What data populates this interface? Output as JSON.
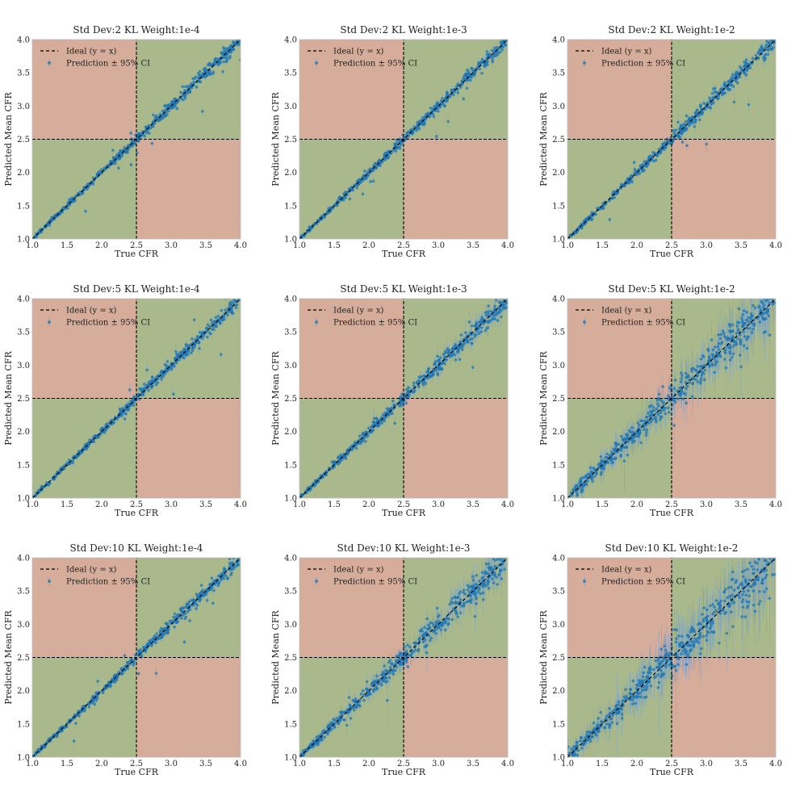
{
  "figure": {
    "background": "#ffffff",
    "colors": {
      "correct_region": "#a9b98b",
      "incorrect_region": "#d6ad9a",
      "ideal_line": "#000000",
      "threshold_line": "#000000",
      "points": "#1f77b4",
      "error_bars": "#6f9ccf"
    }
  },
  "chart_data": [
    {
      "type": "scatter",
      "title": "Std Dev:2 KL Weight:1e-4",
      "xlabel": "True CFR",
      "ylabel": "Predicted Mean CFR",
      "xlim": [
        1.0,
        4.0
      ],
      "ylim": [
        1.0,
        4.0
      ],
      "xticks": [
        "1.0",
        "1.5",
        "2.0",
        "2.5",
        "3.0",
        "3.5",
        "4.0"
      ],
      "yticks": [
        "1.0",
        "1.5",
        "2.0",
        "2.5",
        "3.0",
        "3.5",
        "4.0"
      ],
      "threshold": 2.5,
      "legend": {
        "ideal": "Ideal (y = x)",
        "pred": "Prediction ± 95% CI",
        "placement": "top-left"
      },
      "spread": 0.035,
      "ci": 0.03,
      "n_points": 520,
      "outliers": 10
    },
    {
      "type": "scatter",
      "title": "Std Dev:2 KL Weight:1e-3",
      "xlabel": "True CFR",
      "ylabel": "Predicted Mean CFR",
      "xlim": [
        1.0,
        4.0
      ],
      "ylim": [
        1.0,
        4.0
      ],
      "xticks": [
        "1.0",
        "1.5",
        "2.0",
        "2.5",
        "3.0",
        "3.5",
        "4.0"
      ],
      "yticks": [
        "1.0",
        "1.5",
        "2.0",
        "2.5",
        "3.0",
        "3.5",
        "4.0"
      ],
      "threshold": 2.5,
      "legend": {
        "ideal": "Ideal (y = x)",
        "pred": "Prediction ± 95% CI",
        "placement": "top-left"
      },
      "spread": 0.035,
      "ci": 0.04,
      "n_points": 520,
      "outliers": 8
    },
    {
      "type": "scatter",
      "title": "Std Dev:2 KL Weight:1e-2",
      "xlabel": "True CFR",
      "ylabel": "Predicted Mean CFR",
      "xlim": [
        1.0,
        4.0
      ],
      "ylim": [
        1.0,
        4.0
      ],
      "xticks": [
        "1.0",
        "1.5",
        "2.0",
        "2.5",
        "3.0",
        "3.5",
        "4.0"
      ],
      "yticks": [
        "1.0",
        "1.5",
        "2.0",
        "2.5",
        "3.0",
        "3.5",
        "4.0"
      ],
      "threshold": 2.5,
      "legend": {
        "ideal": "Ideal (y = x)",
        "pred": "Prediction ± 95% CI",
        "placement": "top-left"
      },
      "spread": 0.04,
      "ci": 0.05,
      "n_points": 520,
      "outliers": 10
    },
    {
      "type": "scatter",
      "title": "Std Dev:5 KL Weight:1e-4",
      "xlabel": "True CFR",
      "ylabel": "Predicted Mean CFR",
      "xlim": [
        1.0,
        4.0
      ],
      "ylim": [
        1.0,
        4.0
      ],
      "xticks": [
        "1.0",
        "1.5",
        "2.0",
        "2.5",
        "3.0",
        "3.5",
        "4.0"
      ],
      "yticks": [
        "1.0",
        "1.5",
        "2.0",
        "2.5",
        "3.0",
        "3.5",
        "4.0"
      ],
      "threshold": 2.5,
      "legend": {
        "ideal": "Ideal (y = x)",
        "pred": "Prediction ± 95% CI",
        "placement": "top-left"
      },
      "spread": 0.035,
      "ci": 0.04,
      "n_points": 520,
      "outliers": 10
    },
    {
      "type": "scatter",
      "title": "Std Dev:5 KL Weight:1e-3",
      "xlabel": "True CFR",
      "ylabel": "Predicted Mean CFR",
      "xlim": [
        1.0,
        4.0
      ],
      "ylim": [
        1.0,
        4.0
      ],
      "xticks": [
        "1.0",
        "1.5",
        "2.0",
        "2.5",
        "3.0",
        "3.5",
        "4.0"
      ],
      "yticks": [
        "1.0",
        "1.5",
        "2.0",
        "2.5",
        "3.0",
        "3.5",
        "4.0"
      ],
      "threshold": 2.5,
      "legend": {
        "ideal": "Ideal (y = x)",
        "pred": "Prediction ± 95% CI",
        "placement": "top-left"
      },
      "spread": 0.045,
      "ci": 0.07,
      "n_points": 520,
      "outliers": 8
    },
    {
      "type": "scatter",
      "title": "Std Dev:5 KL Weight:1e-2",
      "xlabel": "True CFR",
      "ylabel": "Predicted Mean CFR",
      "xlim": [
        1.0,
        4.0
      ],
      "ylim": [
        1.0,
        4.0
      ],
      "xticks": [
        "1.0",
        "1.5",
        "2.0",
        "2.5",
        "3.0",
        "3.5",
        "4.0"
      ],
      "yticks": [
        "1.0",
        "1.5",
        "2.0",
        "2.5",
        "3.0",
        "3.5",
        "4.0"
      ],
      "threshold": 2.5,
      "legend": {
        "ideal": "Ideal (y = x)",
        "pred": "Prediction ± 95% CI",
        "placement": "top-left"
      },
      "spread": 0.1,
      "ci": 0.22,
      "n_points": 520,
      "outliers": 6
    },
    {
      "type": "scatter",
      "title": "Std Dev:10 KL Weight:1e-4",
      "xlabel": "True CFR",
      "ylabel": "Predicted Mean CFR",
      "xlim": [
        1.0,
        4.0
      ],
      "ylim": [
        1.0,
        4.0
      ],
      "xticks": [
        "1.0",
        "1.5",
        "2.0",
        "2.5",
        "3.0",
        "3.5",
        "4.0"
      ],
      "yticks": [
        "1.0",
        "1.5",
        "2.0",
        "2.5",
        "3.0",
        "3.5",
        "4.0"
      ],
      "threshold": 2.5,
      "legend": {
        "ideal": "Ideal (y = x)",
        "pred": "Prediction ± 95% CI",
        "placement": "top-left"
      },
      "spread": 0.035,
      "ci": 0.04,
      "n_points": 520,
      "outliers": 10
    },
    {
      "type": "scatter",
      "title": "Std Dev:10 KL Weight:1e-3",
      "xlabel": "True CFR",
      "ylabel": "Predicted Mean CFR",
      "xlim": [
        1.0,
        4.0
      ],
      "ylim": [
        1.0,
        4.0
      ],
      "xticks": [
        "1.0",
        "1.5",
        "2.0",
        "2.5",
        "3.0",
        "3.5",
        "4.0"
      ],
      "yticks": [
        "1.0",
        "1.5",
        "2.0",
        "2.5",
        "3.0",
        "3.5",
        "4.0"
      ],
      "threshold": 2.5,
      "legend": {
        "ideal": "Ideal (y = x)",
        "pred": "Prediction ± 95% CI",
        "placement": "top-left"
      },
      "spread": 0.07,
      "ci": 0.12,
      "n_points": 520,
      "outliers": 8
    },
    {
      "type": "scatter",
      "title": "Std Dev:10 KL Weight:1e-2",
      "xlabel": "True CFR",
      "ylabel": "Predicted Mean CFR",
      "xlim": [
        1.0,
        4.0
      ],
      "ylim": [
        1.0,
        4.0
      ],
      "xticks": [
        "1.0",
        "1.5",
        "2.0",
        "2.5",
        "3.0",
        "3.5",
        "4.0"
      ],
      "yticks": [
        "1.0",
        "1.5",
        "2.0",
        "2.5",
        "3.0",
        "3.5",
        "4.0"
      ],
      "threshold": 2.5,
      "legend": {
        "ideal": "Ideal (y = x)",
        "pred": "Prediction ± 95% CI",
        "placement": "top-left"
      },
      "spread": 0.13,
      "ci": 0.3,
      "n_points": 520,
      "outliers": 8
    }
  ]
}
